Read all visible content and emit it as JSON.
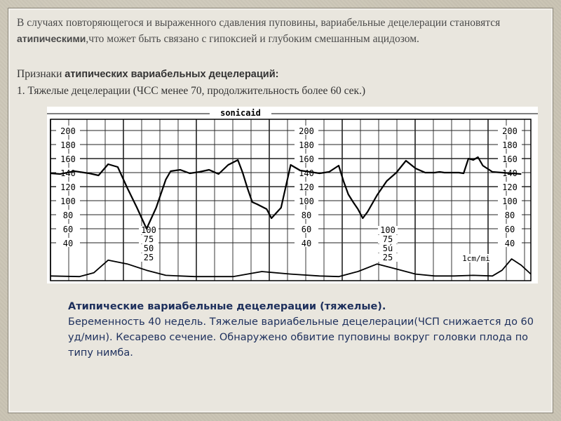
{
  "slide": {
    "intro": {
      "part1": "В случаях повторяющегося и выраженного сдавления пуповины, вариабельные децелерации становятся ",
      "bold": "атипическими",
      "part2": ",что может быть связано с гипоксией и глубоким смешанным ацидозом."
    },
    "signs": {
      "prefix": "Признаки ",
      "bold": "атипических вариабельных децелераций:",
      "item1": "1. Тяжелые децелерации (ЧСС менее 70, продолжительность более 60 сек.)"
    },
    "caption": {
      "title": "Атипические вариабельные децелерации (тяжелые).",
      "body": "Беременность 40 недель. Тяжелые вариабельные децелерации(ЧСП снижается до 60 уд/мин). Кесарево сечение. Обнаружено обвитие пуповины вокруг головки плода по типу нимба."
    }
  },
  "chart_data": {
    "type": "line",
    "brand": "sonicaid",
    "speed_label": "1cm/mi",
    "fhr_ticks": [
      "200",
      "180",
      "160",
      "140",
      "120",
      "100",
      "80",
      "60",
      "40"
    ],
    "uc_ticks": [
      "100",
      "75",
      "50",
      "25"
    ],
    "uc_ticks_second": [
      "100",
      "75",
      "5ú",
      "25"
    ],
    "ylim": [
      40,
      210
    ],
    "xlim": [
      0,
      100
    ],
    "series": [
      {
        "role": "fhr",
        "x": [
          0,
          2,
          5,
          8,
          10,
          12,
          14,
          16,
          18,
          20,
          22,
          24,
          25,
          27,
          29,
          31,
          33,
          35,
          37,
          39,
          40,
          41,
          42,
          43,
          45,
          46,
          48,
          50,
          52,
          54,
          56,
          58,
          60,
          61,
          62,
          63,
          64,
          65,
          66,
          68,
          70,
          72,
          74,
          76,
          78,
          80,
          81,
          82,
          83,
          84,
          85,
          86,
          87,
          88,
          89,
          90,
          92,
          94,
          96,
          98
        ],
        "y": [
          139,
          138,
          142,
          139,
          136,
          152,
          148,
          118,
          90,
          60,
          90,
          130,
          142,
          144,
          139,
          141,
          144,
          138,
          151,
          158,
          140,
          118,
          98,
          95,
          88,
          75,
          90,
          151,
          143,
          141,
          139,
          141,
          150,
          128,
          109,
          98,
          88,
          75,
          84,
          108,
          128,
          140,
          157,
          146,
          140,
          140,
          141,
          140,
          140,
          140,
          140,
          139,
          160,
          158,
          162,
          150,
          141,
          140,
          139,
          138
        ]
      },
      {
        "role": "uc",
        "x": [
          0,
          6,
          9,
          12,
          16,
          20,
          24,
          30,
          38,
          44,
          50,
          56,
          60,
          64,
          68,
          72,
          76,
          80,
          84,
          88,
          92,
          94,
          96,
          98,
          100
        ],
        "y": [
          3,
          2,
          8,
          28,
          22,
          12,
          4,
          2,
          2,
          10,
          6,
          3,
          2,
          10,
          22,
          14,
          6,
          3,
          3,
          4,
          3,
          12,
          30,
          20,
          6
        ]
      }
    ]
  }
}
